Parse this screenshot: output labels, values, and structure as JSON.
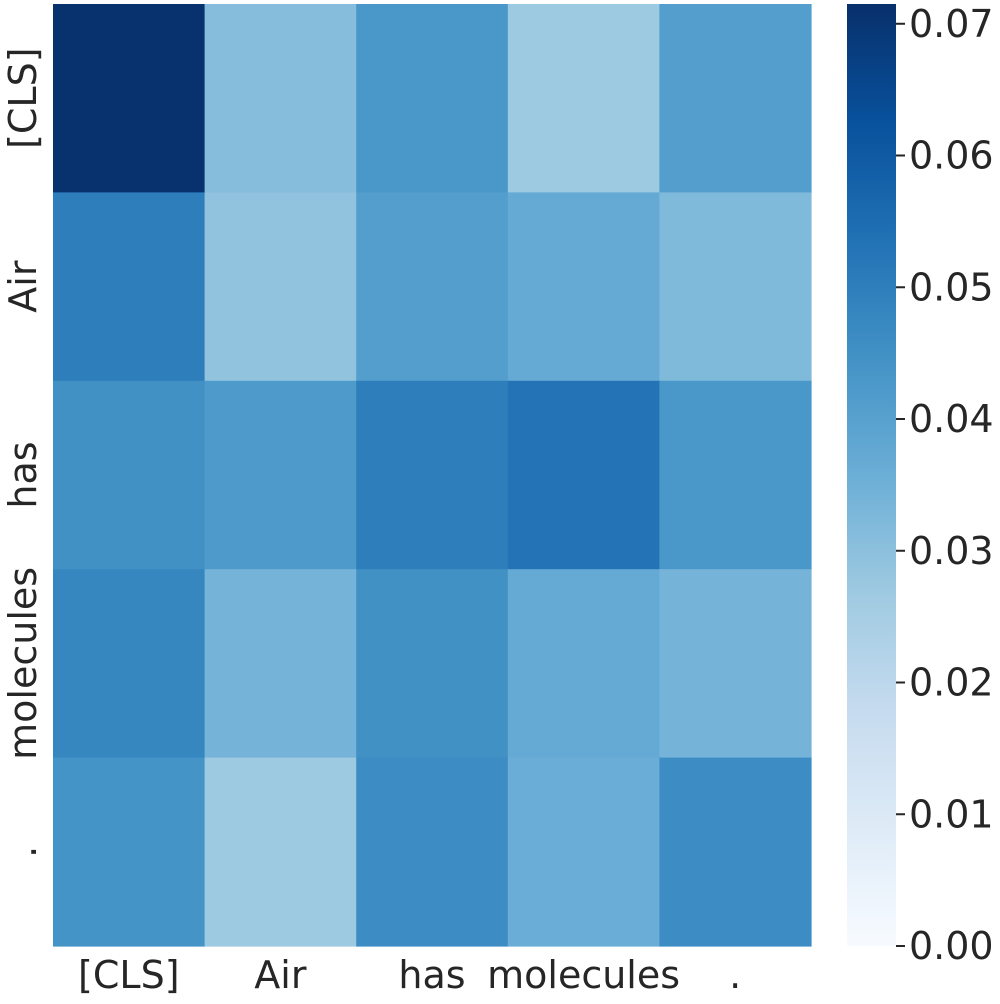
{
  "chart_data": {
    "type": "heatmap",
    "title": "",
    "xlabel": "",
    "ylabel": "",
    "x_labels": [
      "[CLS]",
      "Air",
      "has",
      "molecules",
      "."
    ],
    "y_labels": [
      "[CLS]",
      "Air",
      "has",
      "molecules",
      "."
    ],
    "values": [
      [
        0.071,
        0.031,
        0.043,
        0.027,
        0.041
      ],
      [
        0.05,
        0.029,
        0.041,
        0.037,
        0.032
      ],
      [
        0.045,
        0.042,
        0.05,
        0.053,
        0.043
      ],
      [
        0.048,
        0.034,
        0.045,
        0.037,
        0.034
      ],
      [
        0.044,
        0.027,
        0.046,
        0.036,
        0.046
      ]
    ],
    "colormap": "Blues",
    "color_range": [
      0.0,
      0.0715
    ],
    "colorbar": {
      "ticks": [
        0.0,
        0.01,
        0.02,
        0.03,
        0.04,
        0.05,
        0.06,
        0.07
      ],
      "tick_labels": [
        "0.00",
        "0.01",
        "0.02",
        "0.03",
        "0.04",
        "0.05",
        "0.06",
        "0.07"
      ]
    },
    "grid": false,
    "colors": {
      "text": "#262626",
      "ramp": [
        "#f7fbff",
        "#deebf7",
        "#c6dbef",
        "#9ecae1",
        "#6baed6",
        "#4292c6",
        "#2171b5",
        "#08519c",
        "#08306b"
      ]
    }
  }
}
